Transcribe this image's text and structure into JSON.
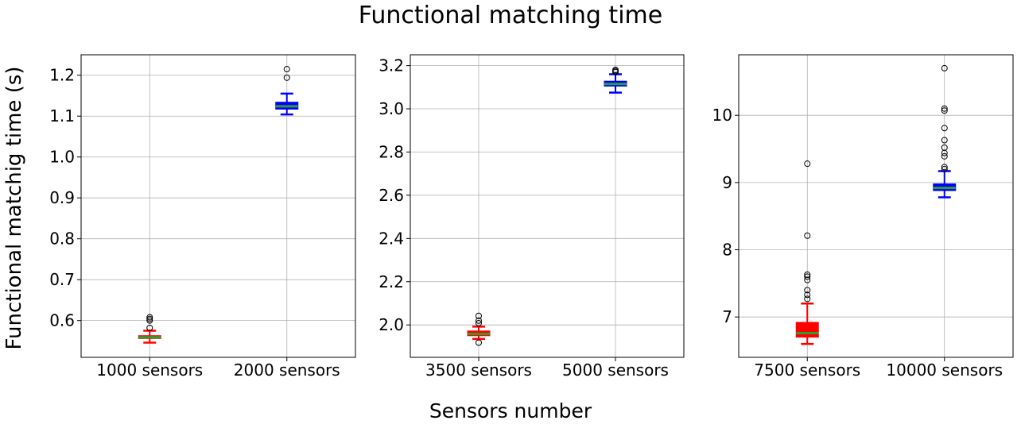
{
  "figure": {
    "title": "Functional matching time",
    "ylabel": "Functional matchig time (s)",
    "xlabel": "Sensors number"
  },
  "chart_data": [
    {
      "type": "box",
      "categories": [
        "1000 sensors",
        "2000 sensors"
      ],
      "ylim": [
        0.51,
        1.25
      ],
      "yticks": [
        0.6,
        0.7,
        0.8,
        0.9,
        1.0,
        1.1,
        1.2
      ],
      "ytick_labels": [
        "0.6",
        "0.7",
        "0.8",
        "0.9",
        "1.0",
        "1.1",
        "1.2"
      ],
      "grid": true,
      "boxes": [
        {
          "name": "1000 sensors",
          "color": "#ff0000",
          "whisker_low": 0.546,
          "q1": 0.556,
          "median": 0.559,
          "q3": 0.563,
          "whisker_high": 0.575,
          "outliers": [
            0.582,
            0.6,
            0.604,
            0.608
          ]
        },
        {
          "name": "2000 sensors",
          "color": "#0000ff",
          "whisker_low": 1.104,
          "q1": 1.117,
          "median": 1.124,
          "q3": 1.134,
          "whisker_high": 1.155,
          "outliers": [
            1.194,
            1.215
          ]
        }
      ]
    },
    {
      "type": "box",
      "categories": [
        "3500 sensors",
        "5000 sensors"
      ],
      "ylim": [
        1.85,
        3.25
      ],
      "yticks": [
        2.0,
        2.2,
        2.4,
        2.6,
        2.8,
        3.0,
        3.2
      ],
      "ytick_labels": [
        "2.0",
        "2.2",
        "2.4",
        "2.6",
        "2.8",
        "3.0",
        "3.2"
      ],
      "grid": true,
      "boxes": [
        {
          "name": "3500 sensors",
          "color": "#ff0000",
          "whisker_low": 1.935,
          "q1": 1.95,
          "median": 1.958,
          "q3": 1.972,
          "whisker_high": 1.992,
          "outliers": [
            1.918,
            2.008,
            2.02,
            2.042
          ]
        },
        {
          "name": "5000 sensors",
          "color": "#0000ff",
          "whisker_low": 3.075,
          "q1": 3.105,
          "median": 3.115,
          "q3": 3.128,
          "whisker_high": 3.16,
          "outliers": [
            3.17,
            3.175,
            3.18
          ]
        }
      ]
    },
    {
      "type": "box",
      "categories": [
        "7500 sensors",
        "10000 sensors"
      ],
      "ylim": [
        6.4,
        10.9
      ],
      "yticks": [
        7,
        8,
        9,
        10
      ],
      "ytick_labels": [
        "7",
        "8",
        "9",
        "10"
      ],
      "grid": true,
      "boxes": [
        {
          "name": "7500 sensors",
          "color": "#ff0000",
          "whisker_low": 6.6,
          "q1": 6.7,
          "median": 6.76,
          "q3": 6.92,
          "whisker_high": 7.2,
          "outliers": [
            7.27,
            7.33,
            7.4,
            7.55,
            7.6,
            7.63,
            8.21,
            9.28
          ]
        },
        {
          "name": "10000 sensors",
          "color": "#0000ff",
          "whisker_low": 8.78,
          "q1": 8.88,
          "median": 8.92,
          "q3": 8.98,
          "whisker_high": 9.17,
          "outliers": [
            9.2,
            9.23,
            9.39,
            9.44,
            9.52,
            9.63,
            9.81,
            10.07,
            10.1,
            10.7
          ]
        }
      ]
    }
  ],
  "style": {
    "median_color": "#2ca02c",
    "grid_color": "#b0b0b0",
    "outlier_marker": "open-circle"
  }
}
